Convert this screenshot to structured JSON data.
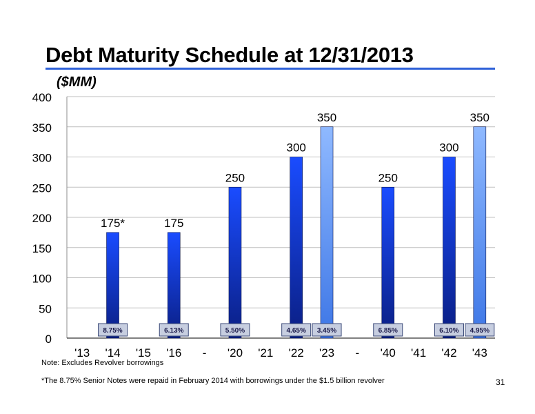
{
  "slide": {
    "title": "Debt Maturity Schedule at 12/31/2013",
    "note": "Note:  Excludes Revolver borrowings",
    "footnote": "*The 8.75% Senior Notes were repaid in February 2014 with borrowings under the $1.5 billion revolver",
    "page_number": "31"
  },
  "chart_data": {
    "type": "bar",
    "ylabel": "($MM)",
    "ylim": [
      0,
      400
    ],
    "yticks": [
      0,
      50,
      100,
      150,
      200,
      250,
      300,
      350,
      400
    ],
    "grid": true,
    "categories": [
      "'13",
      "'14",
      "'15",
      "'16",
      "-",
      "'20",
      "'21",
      "'22",
      "'23",
      "-",
      "'40",
      "'41",
      "'42",
      "'43"
    ],
    "bars": [
      {
        "category": "'14",
        "value": 175,
        "label": "175*",
        "rate": "8.75%",
        "shade": "dark"
      },
      {
        "category": "'16",
        "value": 175,
        "label": "175",
        "rate": "6.13%",
        "shade": "dark"
      },
      {
        "category": "'20",
        "value": 250,
        "label": "250",
        "rate": "5.50%",
        "shade": "dark"
      },
      {
        "category": "'22",
        "value": 300,
        "label": "300",
        "rate": "4.65%",
        "shade": "dark"
      },
      {
        "category": "'23",
        "value": 350,
        "label": "350",
        "rate": "3.45%",
        "shade": "light"
      },
      {
        "category": "'40",
        "value": 250,
        "label": "250",
        "rate": "6.85%",
        "shade": "dark"
      },
      {
        "category": "'42",
        "value": 300,
        "label": "300",
        "rate": "6.10%",
        "shade": "dark"
      },
      {
        "category": "'43",
        "value": 350,
        "label": "350",
        "rate": "4.95%",
        "shade": "light"
      }
    ],
    "colors": {
      "dark_bar_top": "#1a4cff",
      "dark_bar_bottom": "#0a1e82",
      "light_bar_top": "#8fb9ff",
      "light_bar_bottom": "#3d76e6",
      "rate_box_fill": "#c7cee0",
      "rate_box_border": "#3b4a78",
      "gridline": "#bfbfbf",
      "title_rule": "#2d60d8"
    }
  }
}
